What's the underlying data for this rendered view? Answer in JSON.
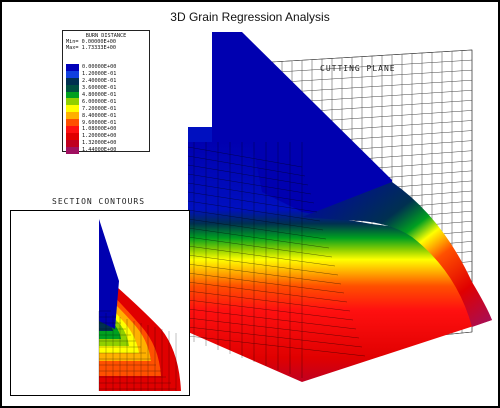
{
  "title": "3D Grain Regression Analysis",
  "legend": {
    "heading": "BURN DISTANCE",
    "min_label": "Min=",
    "min_value": "0.00000E+00",
    "max_label": "Max=",
    "max_value": "1.73333E+00",
    "entries": [
      {
        "value": "0.00000E+00",
        "color": "#0000b8"
      },
      {
        "value": "1.20000E-01",
        "color": "#1040e0"
      },
      {
        "value": "2.40000E-01",
        "color": "#003050"
      },
      {
        "value": "3.60000E-01",
        "color": "#005040"
      },
      {
        "value": "4.80000E-01",
        "color": "#00a020"
      },
      {
        "value": "6.00000E-01",
        "color": "#90d000"
      },
      {
        "value": "7.20000E-01",
        "color": "#ffff00"
      },
      {
        "value": "8.40000E-01",
        "color": "#ffb000"
      },
      {
        "value": "9.60000E-01",
        "color": "#ff5000"
      },
      {
        "value": "1.08000E+00",
        "color": "#ff1010"
      },
      {
        "value": "1.20000E+00",
        "color": "#e00000"
      },
      {
        "value": "1.32000E+00",
        "color": "#c00020"
      },
      {
        "value": "1.44000E+00",
        "color": "#a01060"
      }
    ]
  },
  "cutting_plane_label": "CUTTING PLANE",
  "section_contours_label": "SECTION CONTOURS"
}
